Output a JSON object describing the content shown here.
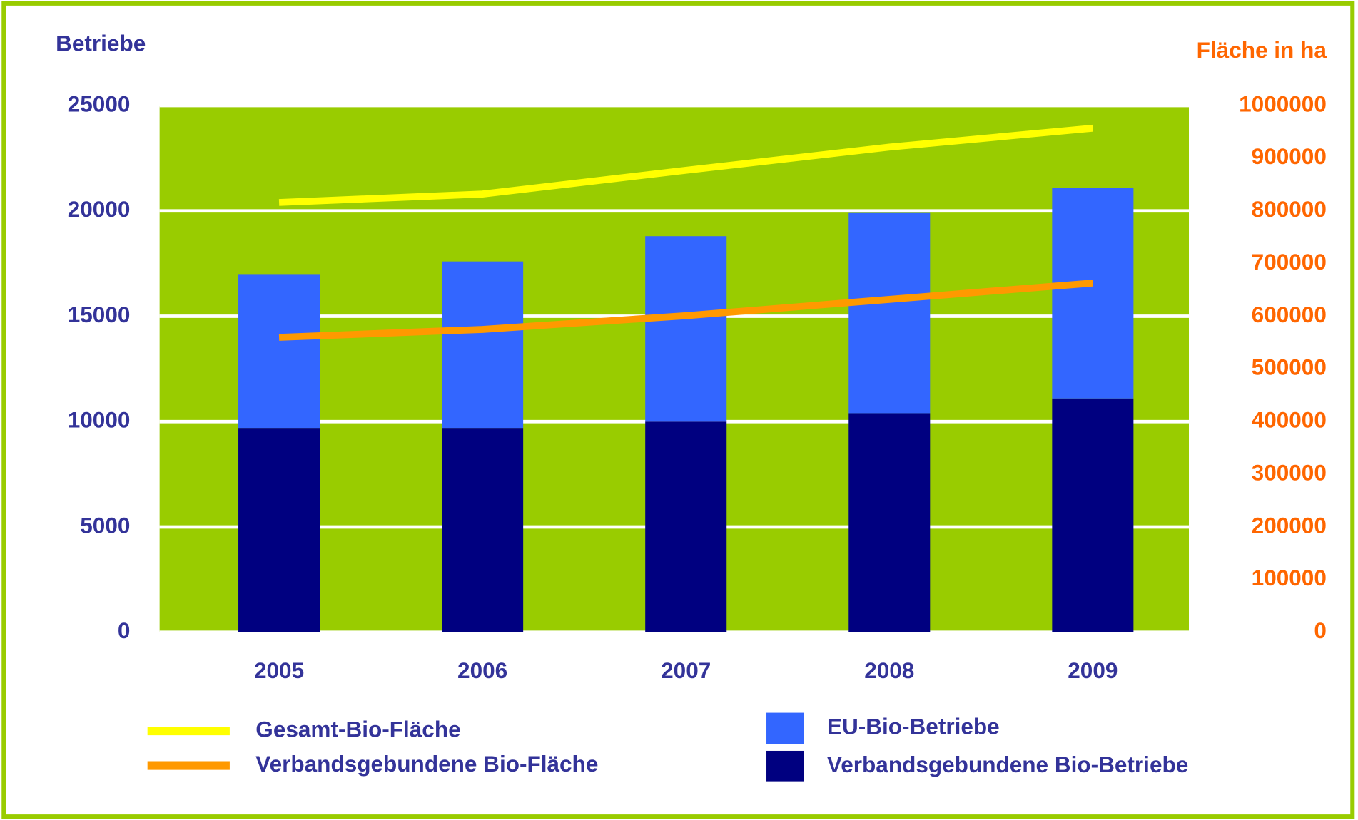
{
  "chart_data": {
    "type": "bar",
    "y_label": "Betriebe",
    "y2_label": "Fläche in ha",
    "categories": [
      "2005",
      "2006",
      "2007",
      "2008",
      "2009"
    ],
    "series": [
      {
        "name": "Gesamt-Bio-Fläche",
        "type": "line",
        "axis": "y2",
        "color": "#ffff00",
        "values": [
          816000,
          832000,
          877000,
          921000,
          957000
        ]
      },
      {
        "name": "Verbandsgebundene Bio-Fläche",
        "type": "line",
        "axis": "y2",
        "color": "#ff9900",
        "values": [
          560000,
          575000,
          601000,
          632000,
          663000
        ]
      },
      {
        "name": "EU-Bio-Betriebe",
        "type": "bar",
        "color": "#3366ff",
        "values": [
          7300,
          7900,
          8800,
          9500,
          10000
        ]
      },
      {
        "name": "Verbandsgebundene Bio-Betriebe",
        "type": "bar",
        "color": "#000080",
        "values": [
          9700,
          9700,
          10000,
          10400,
          11100
        ]
      }
    ],
    "ylim": [
      0,
      25000
    ],
    "yticks": [
      0,
      5000,
      10000,
      15000,
      20000,
      25000
    ],
    "y2lim": [
      0,
      1000000
    ],
    "y2ticks": [
      0,
      100000,
      200000,
      300000,
      400000,
      500000,
      600000,
      700000,
      800000,
      900000,
      1000000
    ],
    "grid": true,
    "plot_background": "#99cc00"
  }
}
